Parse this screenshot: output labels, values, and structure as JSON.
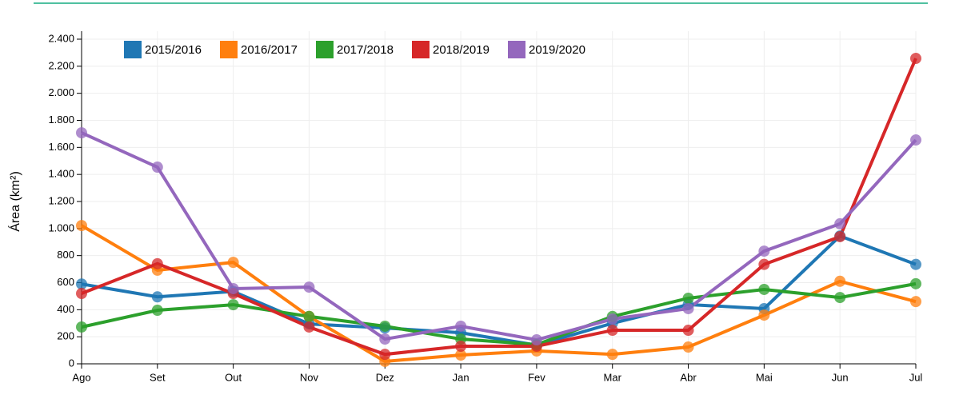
{
  "chart_data": {
    "type": "line",
    "y_label": "Área (km²)",
    "categories": [
      "Ago",
      "Set",
      "Out",
      "Nov",
      "Dez",
      "Jan",
      "Fev",
      "Mar",
      "Abr",
      "Mai",
      "Jun",
      "Jul"
    ],
    "series": [
      {
        "name": "2015/2016",
        "color": "#1f77b4",
        "values": [
          590,
          495,
          535,
          295,
          265,
          230,
          138,
          300,
          438,
          408,
          945,
          735
        ]
      },
      {
        "name": "2016/2017",
        "color": "#ff7f0e",
        "values": [
          1022,
          692,
          750,
          350,
          18,
          65,
          95,
          70,
          124,
          360,
          610,
          460
        ]
      },
      {
        "name": "2017/2018",
        "color": "#2ca02c",
        "values": [
          272,
          396,
          437,
          350,
          278,
          183,
          142,
          350,
          485,
          550,
          490,
          592
        ]
      },
      {
        "name": "2018/2019",
        "color": "#d62728",
        "values": [
          520,
          740,
          520,
          272,
          70,
          130,
          130,
          248,
          248,
          735,
          940,
          2258
        ]
      },
      {
        "name": "2019/2020",
        "color": "#9467bd",
        "values": [
          1708,
          1454,
          556,
          567,
          183,
          278,
          177,
          331,
          408,
          833,
          1035,
          1655
        ]
      }
    ],
    "ylim": [
      0,
      2400
    ],
    "yticks": [
      0,
      200,
      400,
      600,
      800,
      {
        "value": 1000,
        "label": "1.000"
      },
      {
        "value": 1200,
        "label": "1.200"
      },
      {
        "value": 1400,
        "label": "1.400"
      },
      {
        "value": 1600,
        "label": "1.600"
      },
      {
        "value": 1800,
        "label": "1.800"
      },
      {
        "value": 2000,
        "label": "2.000"
      },
      {
        "value": 2200,
        "label": "2.200"
      },
      {
        "value": 2400,
        "label": "2.400"
      }
    ],
    "grid": true
  }
}
